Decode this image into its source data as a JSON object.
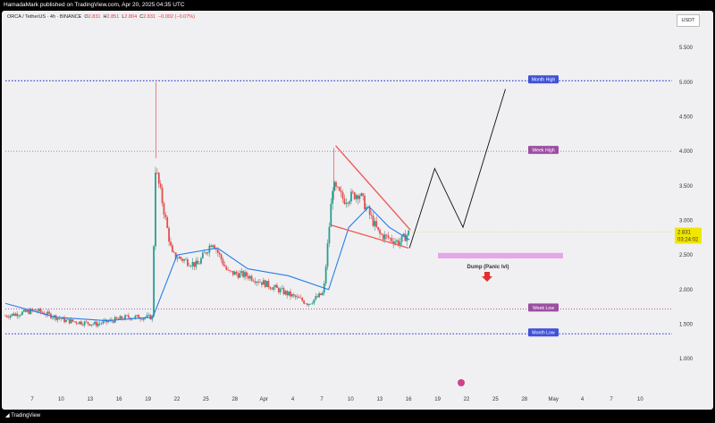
{
  "header": {
    "publisher": "HamadaMark published on TradingView.com, Apr 20, 2025 04:35 UTC"
  },
  "legend": {
    "symbol": "ORCA / TetherUS · 4h · BINANCE",
    "o_label": "O",
    "o": "2.831",
    "h_label": "H",
    "h": "2.851",
    "l_label": "L",
    "l": "2.804",
    "c_label": "C",
    "c": "2.831",
    "chg": "−0.002 (−0.07%)"
  },
  "currency_button": "USDT",
  "footer": {
    "logo": "TradingView"
  },
  "price_tag": {
    "price": "2.831",
    "countdown": "03:24:02"
  },
  "colors": {
    "up": "#2a9d8f",
    "down": "#e05050",
    "ma": "#2b7de9",
    "wedge": "#f05a5a",
    "month_line": "#2233cc",
    "week_line": "#a04aa0",
    "zone": "#e6a6ea",
    "arrow": "#e03030"
  },
  "chart_data": {
    "type": "candlestick",
    "symbol": "ORCA/USDT",
    "interval": "4h",
    "y_axis": {
      "min": 0.6,
      "max": 5.8,
      "ticks": [
        "1.000",
        "1.500",
        "2.000",
        "2.500",
        "3.000",
        "3.500",
        "4.000",
        "4.500",
        "5.000",
        "5.500"
      ]
    },
    "x_axis": {
      "ticks": [
        "7",
        "10",
        "13",
        "16",
        "19",
        "22",
        "25",
        "28",
        "Apr",
        "4",
        "7",
        "10",
        "13",
        "16",
        "19",
        "22",
        "25",
        "28",
        "May",
        "4",
        "7",
        "10"
      ]
    },
    "levels": [
      {
        "name": "Month High",
        "price": 5.02
      },
      {
        "name": "Week High",
        "price": 4.0
      },
      {
        "name": "Week Low",
        "price": 1.72
      },
      {
        "name": "Month Low",
        "price": 1.36
      }
    ],
    "annotations": [
      {
        "text": "Dump (Panic lvl)",
        "zone": [
          2.45,
          2.53
        ]
      }
    ],
    "price_path": [
      {
        "day": 0,
        "price": 1.62
      },
      {
        "day": 3,
        "price": 1.7
      },
      {
        "day": 6,
        "price": 1.55
      },
      {
        "day": 9,
        "price": 1.5
      },
      {
        "day": 12,
        "price": 1.6
      },
      {
        "day": 14.6,
        "price": 1.6
      },
      {
        "day": 14.8,
        "price": 3.8
      },
      {
        "day": 15.5,
        "price": 3.3
      },
      {
        "day": 16.5,
        "price": 2.5
      },
      {
        "day": 19,
        "price": 2.35
      },
      {
        "day": 20.5,
        "price": 2.7
      },
      {
        "day": 22,
        "price": 2.25
      },
      {
        "day": 24,
        "price": 2.2
      },
      {
        "day": 27,
        "price": 2.0
      },
      {
        "day": 30,
        "price": 1.8
      },
      {
        "day": 31.5,
        "price": 1.95
      },
      {
        "day": 32.4,
        "price": 3.5
      },
      {
        "day": 33.5,
        "price": 3.3
      },
      {
        "day": 35,
        "price": 3.4
      },
      {
        "day": 37,
        "price": 2.8
      },
      {
        "day": 39,
        "price": 2.68
      },
      {
        "day": 40,
        "price": 2.831
      }
    ],
    "moving_average": [
      {
        "day": 0,
        "price": 1.8
      },
      {
        "day": 5,
        "price": 1.6
      },
      {
        "day": 10,
        "price": 1.55
      },
      {
        "day": 14.6,
        "price": 1.6
      },
      {
        "day": 17,
        "price": 2.5
      },
      {
        "day": 21,
        "price": 2.6
      },
      {
        "day": 24,
        "price": 2.3
      },
      {
        "day": 28,
        "price": 2.2
      },
      {
        "day": 32,
        "price": 2.0
      },
      {
        "day": 34,
        "price": 2.9
      },
      {
        "day": 36,
        "price": 3.2
      },
      {
        "day": 38,
        "price": 2.9
      },
      {
        "day": 40,
        "price": 2.72
      }
    ],
    "projection": [
      {
        "day": 40,
        "price": 2.6
      },
      {
        "day": 42.5,
        "price": 3.75
      },
      {
        "day": 45.3,
        "price": 2.9
      },
      {
        "day": 49.5,
        "price": 4.9
      }
    ],
    "wedge": {
      "upper": [
        {
          "day": 32.7,
          "price": 4.08
        },
        {
          "day": 40.1,
          "price": 2.86
        }
      ],
      "lower": [
        {
          "day": 32.3,
          "price": 2.93
        },
        {
          "day": 39.9,
          "price": 2.6
        }
      ]
    },
    "last_price": 2.831
  }
}
